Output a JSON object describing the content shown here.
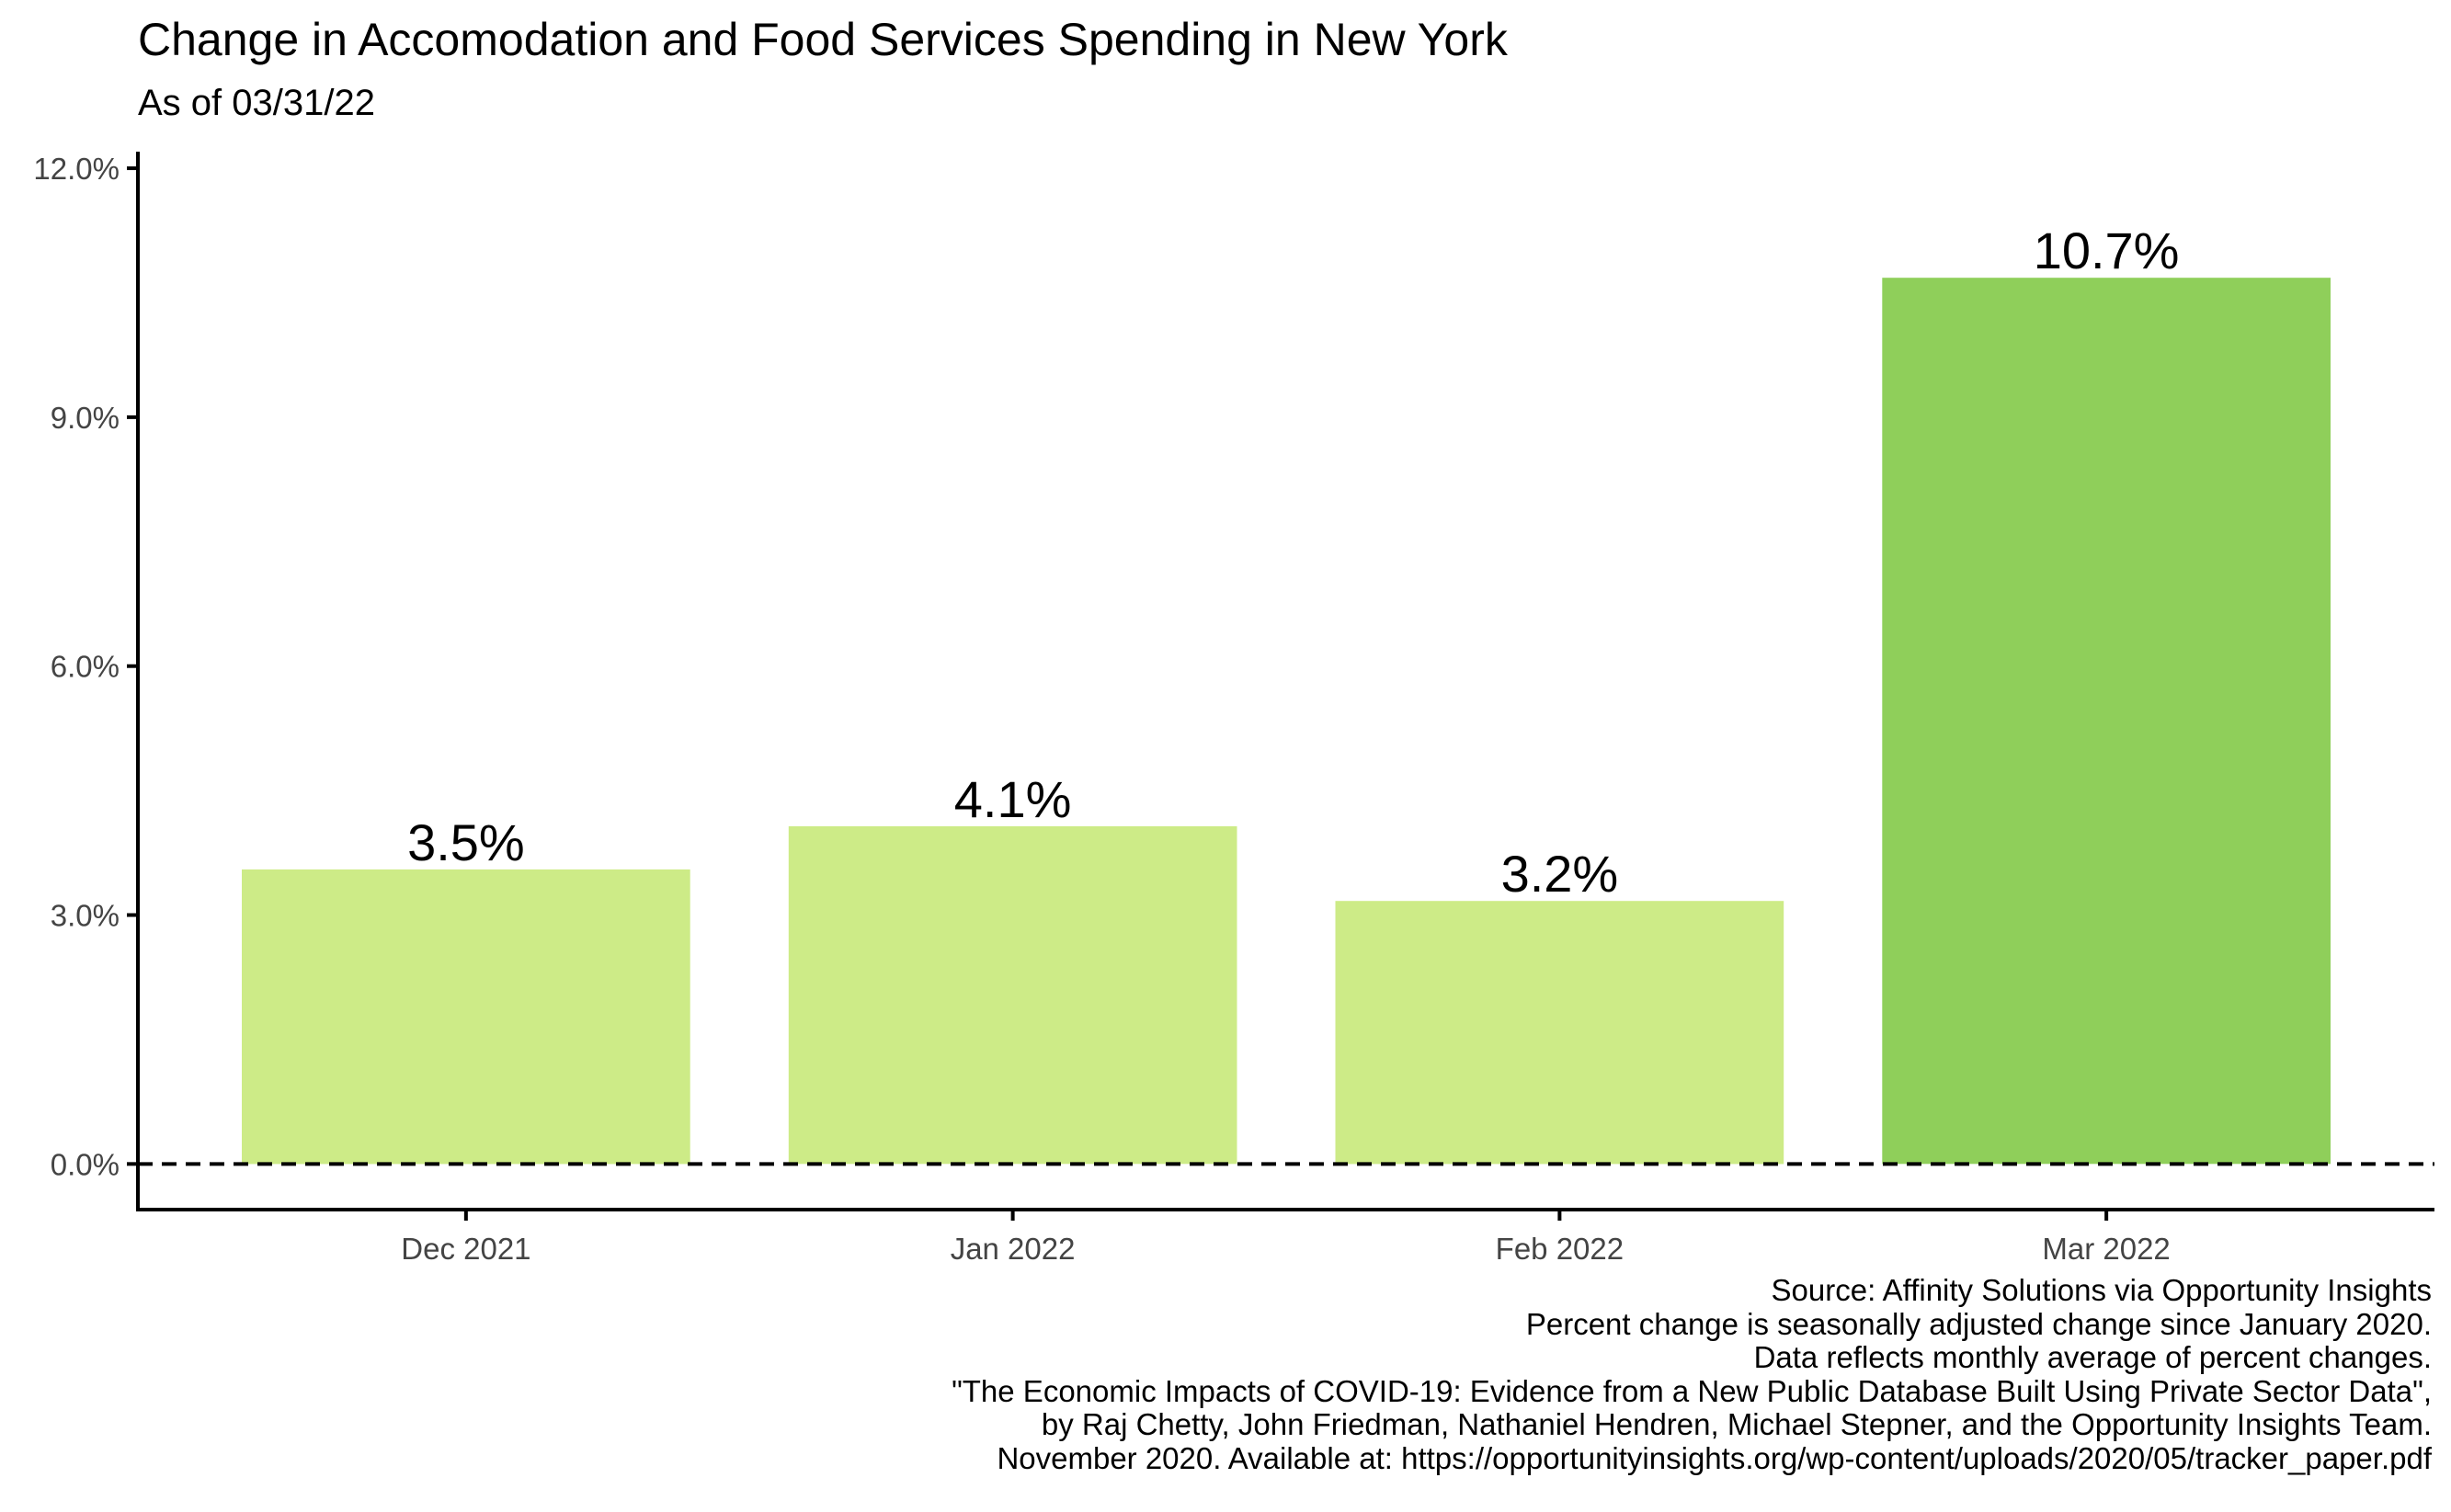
{
  "title": "Change in Accomodation and Food Services Spending in New York",
  "subtitle": "As of 03/31/22",
  "colors": {
    "bar": "#cdeb87",
    "bar_highlight": "#8fcf5a",
    "axis": "#000000",
    "tick_label": "#444444"
  },
  "chart_data": {
    "type": "bar",
    "title": "Change in Accomodation and Food Services Spending in New York",
    "subtitle": "As of 03/31/22",
    "xlabel": "",
    "ylabel": "",
    "categories": [
      "Dec 2021",
      "Jan 2022",
      "Feb 2022",
      "Mar 2022"
    ],
    "values": [
      3.55,
      4.07,
      3.17,
      10.68
    ],
    "value_labels": [
      "3.5%",
      "4.1%",
      "3.2%",
      "10.7%"
    ],
    "highlight_index": 3,
    "ylim": [
      -0.55,
      12.2
    ],
    "yticks": [
      0,
      3,
      6,
      9,
      12
    ],
    "ytick_labels": [
      "0.0%",
      "3.0%",
      "6.0%",
      "9.0%",
      "12.0%"
    ],
    "reference_line": {
      "y": 0,
      "style": "dashed"
    },
    "grid": false,
    "legend": "none"
  },
  "caption": [
    "Source: Affinity Solutions via Opportunity Insights",
    "Percent change is seasonally adjusted change since January 2020.",
    "Data reflects monthly average of percent changes.",
    "\"The Economic Impacts of COVID-19: Evidence from a New Public Database Built Using Private Sector Data\",",
    "by Raj Chetty, John Friedman, Nathaniel Hendren, Michael Stepner, and the Opportunity Insights Team.",
    "November 2020. Available at: https://opportunityinsights.org/wp-content/uploads/2020/05/tracker_paper.pdf"
  ]
}
